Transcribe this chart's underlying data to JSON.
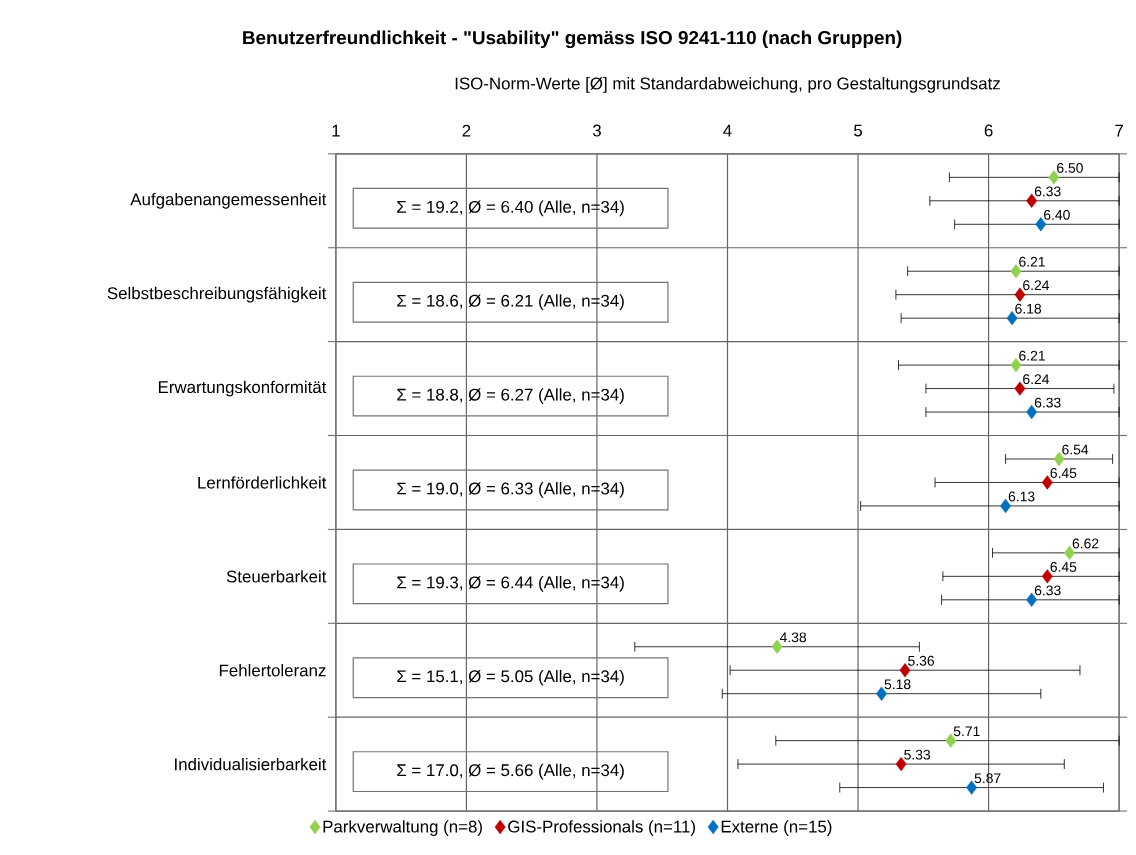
{
  "chart_data": {
    "type": "scatter",
    "orientation": "horizontal",
    "title": "Benutzerfreundlichkeit - \"Usability\" gemäss ISO 9241-110 (nach Gruppen)",
    "xlabel": "ISO-Norm-Werte [Ø] mit Standardabweichung, pro Gestaltungsgrundsatz",
    "categories": [
      "Aufgabenangemessenheit",
      "Selbstbeschreibungsfähigkeit",
      "Erwartungskonformität",
      "Lernförderlichkeit",
      "Steuerbarkeit",
      "Fehlertoleranz",
      "Individualisierbarkeit"
    ],
    "xlim": [
      1,
      7
    ],
    "xticks": [
      1,
      2,
      3,
      4,
      5,
      6,
      7
    ],
    "grid": true,
    "legend": "bottom",
    "marker": "diamond",
    "annotations": [
      "Σ = 19.2, Ø = 6.40 (Alle, n=34)",
      "Σ = 18.6, Ø = 6.21 (Alle, n=34)",
      "Σ = 18.8, Ø = 6.27 (Alle, n=34)",
      "Σ = 19.0, Ø = 6.33 (Alle, n=34)",
      "Σ = 19.3, Ø = 6.44 (Alle, n=34)",
      "Σ = 15.1, Ø = 5.05 (Alle, n=34)",
      "Σ = 17.0, Ø = 5.66 (Alle, n=34)"
    ],
    "series": [
      {
        "name": "Parkverwaltung (n=8)",
        "color": "#92d050",
        "values": [
          6.5,
          6.21,
          6.21,
          6.54,
          6.62,
          4.38,
          5.71
        ],
        "value_labels": [
          "6.50",
          "6.21",
          "6.21",
          "6.54",
          "6.62",
          "4.38",
          "5.71"
        ],
        "errors": [
          [
            5.7,
            7
          ],
          [
            5.38,
            7
          ],
          [
            5.31,
            7
          ],
          0.41,
          [
            6.03,
            7
          ],
          1.09,
          [
            4.37,
            7
          ]
        ]
      },
      {
        "name": "GIS-Professionals (n=11)",
        "color": "#c00000",
        "values": [
          6.33,
          6.24,
          6.24,
          6.45,
          6.45,
          5.36,
          5.33
        ],
        "value_labels": [
          "6.33",
          "6.24",
          "6.24",
          "6.45",
          "6.45",
          "5.36",
          "5.33"
        ],
        "errors": [
          [
            5.55,
            7
          ],
          [
            5.29,
            7
          ],
          0.72,
          [
            5.59,
            7
          ],
          [
            5.65,
            7
          ],
          1.34,
          1.25
        ]
      },
      {
        "name": "Externe (n=15)",
        "color": "#0070c0",
        "values": [
          6.4,
          6.18,
          6.33,
          6.13,
          6.33,
          5.18,
          5.87
        ],
        "value_labels": [
          "6.40",
          "6.18",
          "6.33",
          "6.13",
          "6.33",
          "5.18",
          "5.87"
        ],
        "errors": [
          [
            5.74,
            7
          ],
          [
            5.33,
            7
          ],
          [
            5.52,
            7
          ],
          [
            5.02,
            7
          ],
          [
            5.64,
            7
          ],
          1.22,
          1.01
        ]
      }
    ]
  }
}
